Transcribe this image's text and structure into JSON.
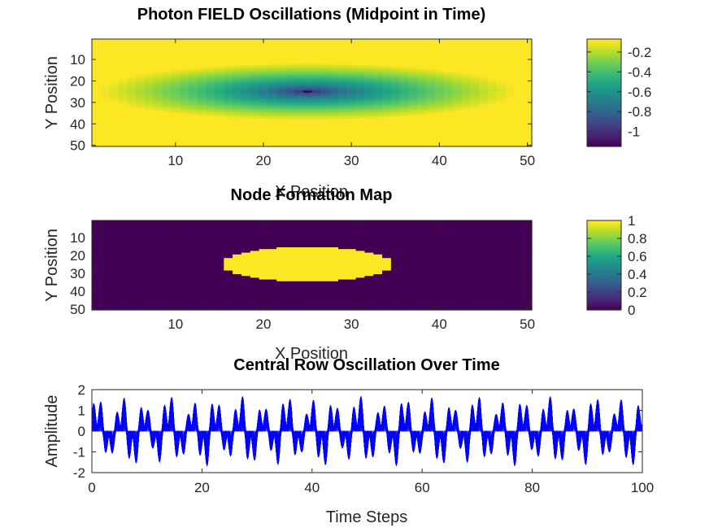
{
  "chart_data": [
    {
      "type": "heatmap",
      "title": "Photon FIELD Oscillations (Midpoint in Time)",
      "xlabel": "X Position",
      "ylabel": "Y Position",
      "grid_size": [
        50,
        50
      ],
      "xlim": [
        1,
        50
      ],
      "ylim": [
        1,
        50
      ],
      "xticks": [
        10,
        20,
        30,
        40,
        50
      ],
      "yticks": [
        10,
        20,
        30,
        40,
        50
      ],
      "y_reversed": true,
      "center": [
        25,
        25
      ],
      "field_min": -1.15,
      "field_max": -0.07,
      "colormap": "viridis",
      "colorbar": {
        "min": -1.15,
        "max": -0.07,
        "ticks": [
          -0.2,
          -0.4,
          -0.6,
          -0.8,
          -1
        ]
      }
    },
    {
      "type": "heatmap",
      "title": "Node Formation Map",
      "xlabel": "X Position",
      "ylabel": "Y Position",
      "grid_size": [
        50,
        50
      ],
      "xlim": [
        1,
        50
      ],
      "ylim": [
        1,
        50
      ],
      "xticks": [
        10,
        20,
        30,
        40,
        50
      ],
      "yticks": [
        10,
        20,
        30,
        40,
        50
      ],
      "y_reversed": true,
      "node_value": 1,
      "background_value": 0,
      "node_x_range": [
        16,
        34
      ],
      "node_y_range": [
        16,
        34
      ],
      "colormap": "viridis",
      "colorbar": {
        "min": 0,
        "max": 1,
        "ticks": [
          0,
          0.2,
          0.4,
          0.6,
          0.8,
          1
        ]
      }
    },
    {
      "type": "line",
      "title": "Central Row Oscillation Over Time",
      "xlabel": "Time Steps",
      "ylabel": "Amplitude",
      "xlim": [
        0,
        100
      ],
      "ylim": [
        -2,
        2
      ],
      "xticks": [
        0,
        20,
        40,
        60,
        80,
        100
      ],
      "yticks": [
        2,
        1,
        0,
        -1,
        -2
      ],
      "line_color": "#0000ff",
      "series_count": 50,
      "oscillation_period": 4.3,
      "peak_amplitude": 2
    }
  ]
}
